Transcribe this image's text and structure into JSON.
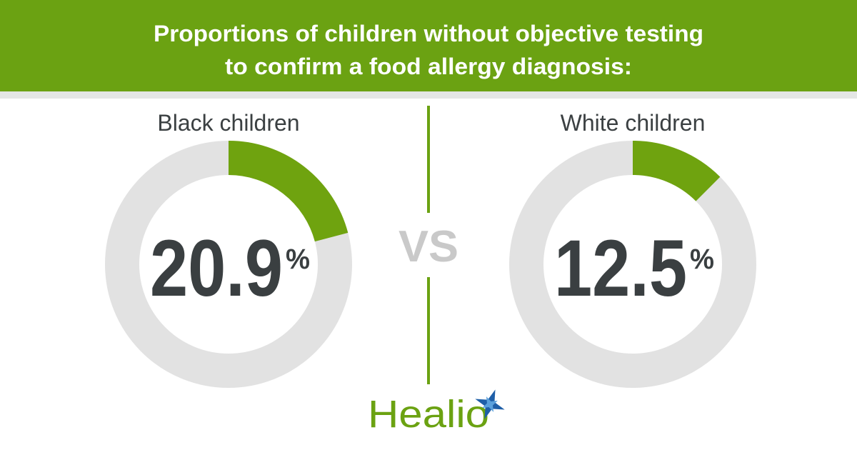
{
  "title": [
    "Proportions of children without objective testing",
    "to confirm a food allergy diagnosis:"
  ],
  "separator": "VS",
  "brand": "Healio",
  "chart_data": [
    {
      "type": "donut",
      "title": "Black children",
      "values": [
        20.9
      ],
      "unit": "%",
      "ylim": [
        0,
        100
      ],
      "color": "#6fa30f",
      "track_color": "#e2e2e2"
    },
    {
      "type": "donut",
      "title": "White children",
      "values": [
        12.5
      ],
      "unit": "%",
      "ylim": [
        0,
        100
      ],
      "color": "#6fa30f",
      "track_color": "#e2e2e2"
    }
  ]
}
